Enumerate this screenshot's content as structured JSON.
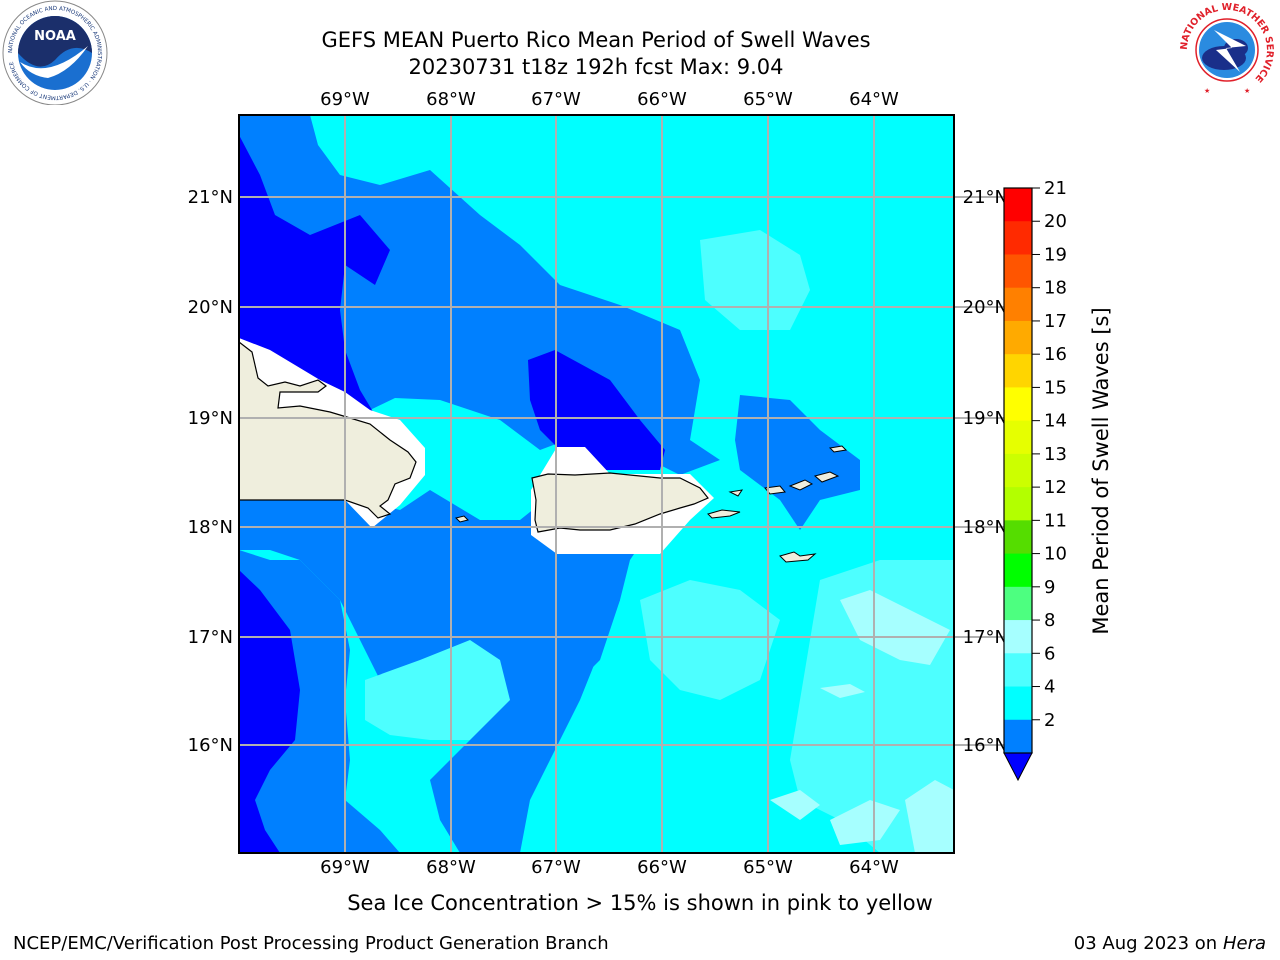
{
  "header": {
    "title_line1": "GEFS MEAN Puerto Rico Mean Period of Swell Waves",
    "title_line2": "20230731 t18z 192h fcst   Max: 9.04"
  },
  "map": {
    "lon_labels": [
      "69°W",
      "68°W",
      "67°W",
      "66°W",
      "65°W",
      "64°W"
    ],
    "lat_labels": [
      "21°N",
      "20°N",
      "19°N",
      "18°N",
      "17°N",
      "16°N"
    ],
    "land_color": "#efeedd",
    "ocean_colors": {
      "2-4": "#0000ff",
      "4-6": "#0080ff",
      "6-8": "#00ffff",
      "8-9": "#4dffff",
      "9-10": "#a6ffff"
    }
  },
  "colorbar": {
    "label": "Mean Period of Swell Waves [s]",
    "ticks": [
      "21",
      "20",
      "19",
      "18",
      "17",
      "16",
      "15",
      "14",
      "13",
      "12",
      "11",
      "10",
      "9",
      "8",
      "6",
      "4",
      "2"
    ],
    "colors": [
      "#ff0000",
      "#ff2a00",
      "#ff5500",
      "#ff8000",
      "#ffaa00",
      "#ffd500",
      "#ffff00",
      "#e6ff00",
      "#ccff00",
      "#b3ff00",
      "#55dd00",
      "#00ff00",
      "#4dff80",
      "#a6ffff",
      "#4dffff",
      "#00ffff",
      "#0080ff"
    ],
    "under_color": "#0000ff"
  },
  "footer": {
    "note": "Sea Ice Concentration > 15% is shown in pink to yellow",
    "credit": "NCEP/EMC/Verification Post Processing Product Generation Branch",
    "date": "03 Aug 2023 on",
    "machine": "Hera"
  },
  "logos": {
    "noaa_text": "NOAA",
    "noaa_ring": "NATIONAL OCEANIC AND ATMOSPHERIC ADMINISTRATION · U.S. DEPARTMENT OF COMMERCE",
    "nws_ring": "NATIONAL WEATHER SERVICE"
  }
}
